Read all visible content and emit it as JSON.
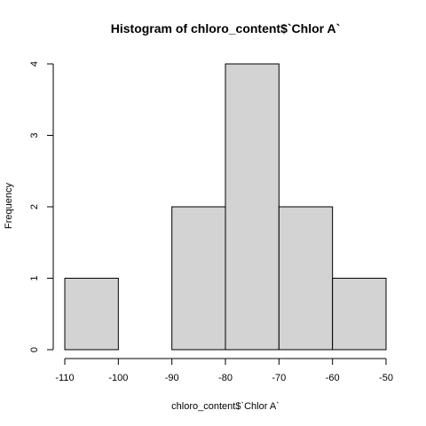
{
  "chart_data": {
    "type": "bar",
    "title": "Histogram of chloro_content$`Chlor A`",
    "xlabel": "chloro_content$`Chlor A`",
    "ylabel": "Frequency",
    "bins": [
      {
        "from": -110,
        "to": -100,
        "count": 1
      },
      {
        "from": -100,
        "to": -90,
        "count": 0
      },
      {
        "from": -90,
        "to": -80,
        "count": 2
      },
      {
        "from": -80,
        "to": -70,
        "count": 4
      },
      {
        "from": -70,
        "to": -60,
        "count": 2
      },
      {
        "from": -60,
        "to": -50,
        "count": 1
      }
    ],
    "xlim": [
      -110,
      -50
    ],
    "ylim": [
      0,
      4
    ],
    "x_ticks": [
      "-110",
      "-100",
      "-90",
      "-80",
      "-70",
      "-60",
      "-50"
    ],
    "y_ticks": [
      "0",
      "1",
      "2",
      "3",
      "4"
    ],
    "bar_fill": "#d3d3d3",
    "grid": false
  }
}
